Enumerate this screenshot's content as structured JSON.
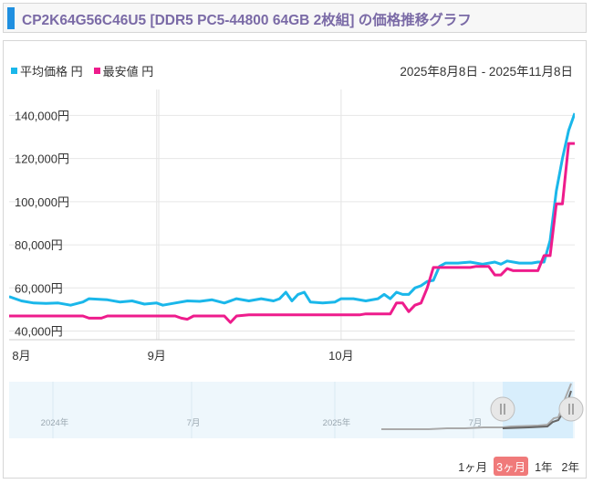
{
  "header": {
    "title": "CP2K64G56C46U5 [DDR5 PC5-44800 64GB 2枚組] の価格推移グラフ"
  },
  "legend": [
    {
      "label": "平均価格 円",
      "color": "#1ab7ea"
    },
    {
      "label": "最安値 円",
      "color": "#ee1c8c"
    }
  ],
  "date_range": "2025年8月8日 - 2025年11月8日",
  "navigator": {
    "labels": [
      "2024年",
      "7月",
      "2025年",
      "7月"
    ]
  },
  "periods": [
    {
      "label": "1ヶ月",
      "active": false
    },
    {
      "label": "3ヶ月",
      "active": true
    },
    {
      "label": "1年",
      "active": false
    },
    {
      "label": "2年",
      "active": false
    }
  ],
  "chart_data": {
    "type": "line",
    "x_domain": [
      "2025-08-08",
      "2025-11-08"
    ],
    "ylim": [
      36000,
      152000
    ],
    "y_ticks": [
      40000,
      60000,
      80000,
      100000,
      120000,
      140000
    ],
    "y_tick_labels": [
      "40,000円",
      "60,000円",
      "80,000円",
      "100,000円",
      "120,000円",
      "140,000円"
    ],
    "x_ticks": [
      {
        "date": "2025-08-10",
        "label": "8月"
      },
      {
        "date": "2025-09-01",
        "label": "9月"
      },
      {
        "date": "2025-10-01",
        "label": "10月"
      }
    ],
    "series": [
      {
        "name": "平均価格 円",
        "color": "#1ab7ea",
        "points": [
          [
            "2025-08-08",
            56000
          ],
          [
            "2025-08-10",
            54000
          ],
          [
            "2025-08-12",
            53000
          ],
          [
            "2025-08-14",
            52800
          ],
          [
            "2025-08-16",
            53000
          ],
          [
            "2025-08-18",
            52000
          ],
          [
            "2025-08-20",
            53500
          ],
          [
            "2025-08-21",
            55000
          ],
          [
            "2025-08-24",
            54500
          ],
          [
            "2025-08-26",
            53500
          ],
          [
            "2025-08-28",
            54000
          ],
          [
            "2025-08-30",
            52500
          ],
          [
            "2025-09-01",
            53000
          ],
          [
            "2025-09-02",
            52000
          ],
          [
            "2025-09-04",
            53000
          ],
          [
            "2025-09-06",
            54000
          ],
          [
            "2025-09-08",
            53800
          ],
          [
            "2025-09-10",
            54500
          ],
          [
            "2025-09-12",
            53000
          ],
          [
            "2025-09-14",
            55000
          ],
          [
            "2025-09-16",
            54000
          ],
          [
            "2025-09-18",
            55000
          ],
          [
            "2025-09-20",
            54000
          ],
          [
            "2025-09-21",
            55000
          ],
          [
            "2025-09-22",
            58000
          ],
          [
            "2025-09-23",
            54000
          ],
          [
            "2025-09-24",
            57000
          ],
          [
            "2025-09-25",
            58000
          ],
          [
            "2025-09-26",
            53500
          ],
          [
            "2025-09-28",
            53000
          ],
          [
            "2025-09-30",
            53500
          ],
          [
            "2025-10-01",
            55000
          ],
          [
            "2025-10-03",
            55000
          ],
          [
            "2025-10-05",
            54000
          ],
          [
            "2025-10-07",
            55000
          ],
          [
            "2025-10-08",
            57000
          ],
          [
            "2025-10-09",
            55000
          ],
          [
            "2025-10-10",
            58000
          ],
          [
            "2025-10-11",
            57000
          ],
          [
            "2025-10-12",
            57000
          ],
          [
            "2025-10-13",
            60000
          ],
          [
            "2025-10-14",
            61000
          ],
          [
            "2025-10-15",
            63000
          ],
          [
            "2025-10-16",
            63500
          ],
          [
            "2025-10-17",
            70000
          ],
          [
            "2025-10-18",
            71500
          ],
          [
            "2025-10-20",
            71500
          ],
          [
            "2025-10-22",
            72000
          ],
          [
            "2025-10-24",
            71000
          ],
          [
            "2025-10-26",
            72000
          ],
          [
            "2025-10-27",
            71000
          ],
          [
            "2025-10-28",
            72500
          ],
          [
            "2025-10-30",
            71500
          ],
          [
            "2025-11-01",
            71500
          ],
          [
            "2025-11-02",
            72000
          ],
          [
            "2025-11-03",
            72000
          ],
          [
            "2025-11-04",
            82000
          ],
          [
            "2025-11-05",
            105000
          ],
          [
            "2025-11-06",
            120000
          ],
          [
            "2025-11-07",
            133000
          ],
          [
            "2025-11-08",
            141000
          ]
        ]
      },
      {
        "name": "最安値 円",
        "color": "#ee1c8c",
        "points": [
          [
            "2025-08-08",
            47000
          ],
          [
            "2025-08-20",
            47000
          ],
          [
            "2025-08-21",
            46000
          ],
          [
            "2025-08-23",
            46000
          ],
          [
            "2025-08-24",
            47000
          ],
          [
            "2025-09-04",
            47000
          ],
          [
            "2025-09-05",
            46000
          ],
          [
            "2025-09-06",
            45500
          ],
          [
            "2025-09-07",
            47000
          ],
          [
            "2025-09-12",
            47000
          ],
          [
            "2025-09-13",
            44000
          ],
          [
            "2025-09-14",
            47000
          ],
          [
            "2025-09-16",
            47500
          ],
          [
            "2025-10-04",
            47500
          ],
          [
            "2025-10-05",
            48000
          ],
          [
            "2025-10-09",
            48000
          ],
          [
            "2025-10-10",
            53000
          ],
          [
            "2025-10-11",
            53000
          ],
          [
            "2025-10-12",
            49000
          ],
          [
            "2025-10-13",
            52000
          ],
          [
            "2025-10-14",
            53000
          ],
          [
            "2025-10-15",
            60000
          ],
          [
            "2025-10-16",
            69500
          ],
          [
            "2025-10-22",
            69500
          ],
          [
            "2025-10-23",
            70000
          ],
          [
            "2025-10-25",
            70000
          ],
          [
            "2025-10-26",
            66000
          ],
          [
            "2025-10-27",
            66000
          ],
          [
            "2025-10-28",
            69000
          ],
          [
            "2025-10-29",
            68000
          ],
          [
            "2025-11-02",
            68000
          ],
          [
            "2025-11-03",
            75000
          ],
          [
            "2025-11-04",
            75000
          ],
          [
            "2025-11-05",
            99000
          ],
          [
            "2025-11-06",
            99000
          ],
          [
            "2025-11-07",
            127000
          ],
          [
            "2025-11-08",
            127000
          ]
        ]
      }
    ]
  }
}
